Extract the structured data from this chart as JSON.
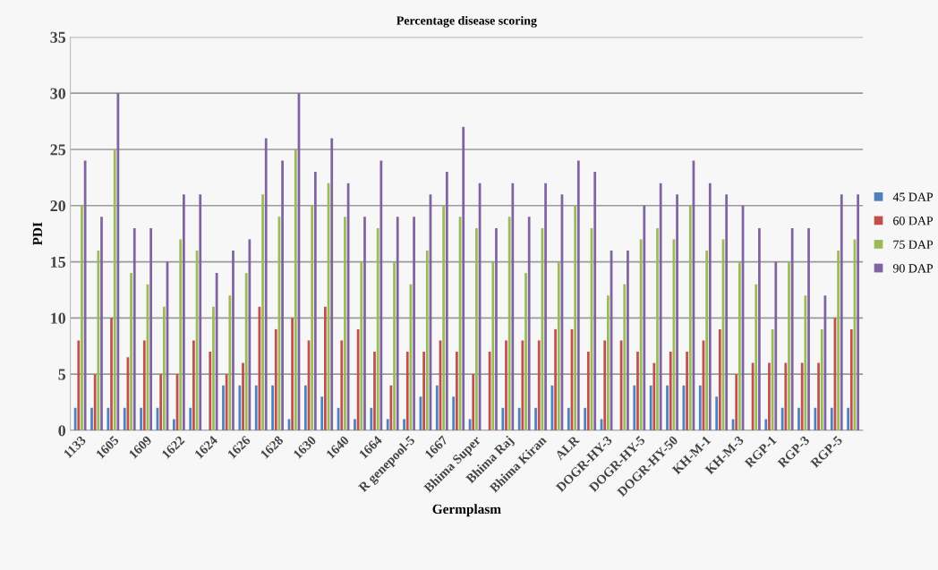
{
  "chart_data": {
    "type": "bar",
    "title": "Percentage disease scoring",
    "xlabel": "Germplasm",
    "ylabel": "PDI",
    "categories": [
      "1133",
      null,
      "1605",
      null,
      "1609",
      null,
      "1622",
      null,
      "1624",
      null,
      "1626",
      null,
      "1628",
      null,
      "1630",
      null,
      "1640",
      null,
      "1664",
      null,
      "R genepool-5",
      null,
      "1667",
      null,
      "Bhima Super",
      null,
      "Bhima Raj",
      null,
      "Bhima Kiran",
      null,
      "ALR",
      null,
      "DOGR-HY-3",
      null,
      "DOGR-HY-5",
      null,
      "DOGR-HY-50",
      null,
      "KH-M-1",
      null,
      "KH-M-3",
      null,
      "RGP-1",
      null,
      "RGP-3",
      null,
      "RGP-5",
      null
    ],
    "series": [
      {
        "name": "45 DAP",
        "color": "#4f81bd",
        "values": [
          2,
          2,
          2,
          2,
          2,
          2,
          1,
          2,
          0,
          4,
          4,
          4,
          4,
          1,
          4,
          3,
          2,
          1,
          2,
          1,
          1,
          3,
          4,
          3,
          1,
          0,
          2,
          2,
          2,
          4,
          2,
          2,
          1,
          0,
          4,
          4,
          4,
          4,
          4,
          3,
          1,
          0,
          1,
          2,
          2,
          2,
          2,
          2
        ]
      },
      {
        "name": "60 DAP",
        "color": "#c0504d",
        "values": [
          8,
          5,
          10,
          6.5,
          8,
          5,
          5,
          8,
          7,
          5,
          6,
          11,
          9,
          10,
          8,
          11,
          8,
          9,
          7,
          4,
          7,
          7,
          8,
          7,
          5,
          7,
          8,
          8,
          8,
          9,
          9,
          7,
          8,
          8,
          7,
          6,
          7,
          7,
          8,
          9,
          5,
          6,
          6,
          6,
          6,
          6,
          10,
          9
        ]
      },
      {
        "name": "75 DAP",
        "color": "#9bbb59",
        "values": [
          20,
          16,
          25,
          14,
          13,
          11,
          17,
          16,
          11,
          12,
          14,
          21,
          19,
          25,
          20,
          22,
          19,
          15,
          18,
          15,
          13,
          16,
          20,
          19,
          18,
          15,
          19,
          14,
          18,
          15,
          20,
          18,
          12,
          13,
          17,
          18,
          17,
          20,
          16,
          17,
          15,
          13,
          9,
          15,
          12,
          9,
          16,
          17
        ]
      },
      {
        "name": "90 DAP",
        "color": "#8064a2",
        "values": [
          24,
          19,
          30,
          18,
          18,
          15,
          21,
          21,
          14,
          16,
          17,
          26,
          24,
          30,
          23,
          26,
          22,
          19,
          24,
          19,
          19,
          21,
          23,
          27,
          22,
          18,
          22,
          19,
          22,
          21,
          24,
          23,
          16,
          16,
          20,
          22,
          21,
          24,
          22,
          21,
          20,
          18,
          15,
          18,
          18,
          12,
          21,
          21
        ]
      }
    ],
    "ylim": [
      0,
      35
    ],
    "yticks": [
      0,
      5,
      10,
      15,
      20,
      25,
      30,
      35
    ],
    "grid": "y",
    "legend": "right"
  }
}
